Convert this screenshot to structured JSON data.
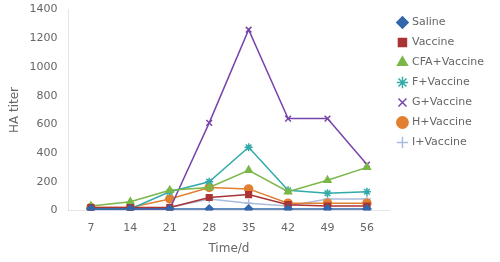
{
  "chart_data": {
    "type": "line",
    "x": [
      7,
      14,
      21,
      28,
      35,
      42,
      49,
      56
    ],
    "xlabel": "Time/d",
    "ylabel": "HA titer",
    "xlim": [
      3,
      60
    ],
    "xticks": [
      7,
      14,
      21,
      28,
      35,
      42,
      49,
      56
    ],
    "ylim": [
      0,
      1400
    ],
    "yticks": [
      0,
      200,
      400,
      600,
      800,
      1000,
      1200,
      1400
    ],
    "grid": false,
    "legend": "right",
    "series": [
      {
        "name": "Saline",
        "color": "#3366aa",
        "marker": "diamond",
        "values": [
          10,
          10,
          10,
          10,
          10,
          10,
          10,
          10
        ]
      },
      {
        "name": "Vaccine",
        "color": "#aa3333",
        "marker": "square",
        "values": [
          20,
          20,
          20,
          90,
          110,
          40,
          30,
          30
        ]
      },
      {
        "name": "CFA+Vaccine",
        "color": "#7ab648",
        "marker": "triangle",
        "values": [
          30,
          60,
          140,
          160,
          280,
          130,
          210,
          300
        ]
      },
      {
        "name": "F+Vaccine",
        "color": "#33aaaa",
        "marker": "star",
        "values": [
          10,
          10,
          130,
          200,
          440,
          140,
          120,
          130
        ]
      },
      {
        "name": "G+Vaccine",
        "color": "#7744aa",
        "marker": "x",
        "values": [
          10,
          10,
          10,
          610,
          1260,
          640,
          640,
          320
        ]
      },
      {
        "name": "H+Vaccine",
        "color": "#e08030",
        "marker": "circle",
        "values": [
          20,
          20,
          80,
          160,
          150,
          50,
          50,
          50
        ]
      },
      {
        "name": "I+Vaccine",
        "color": "#aabbdd",
        "marker": "plus",
        "values": [
          5,
          5,
          20,
          80,
          50,
          30,
          80,
          80
        ]
      }
    ]
  }
}
